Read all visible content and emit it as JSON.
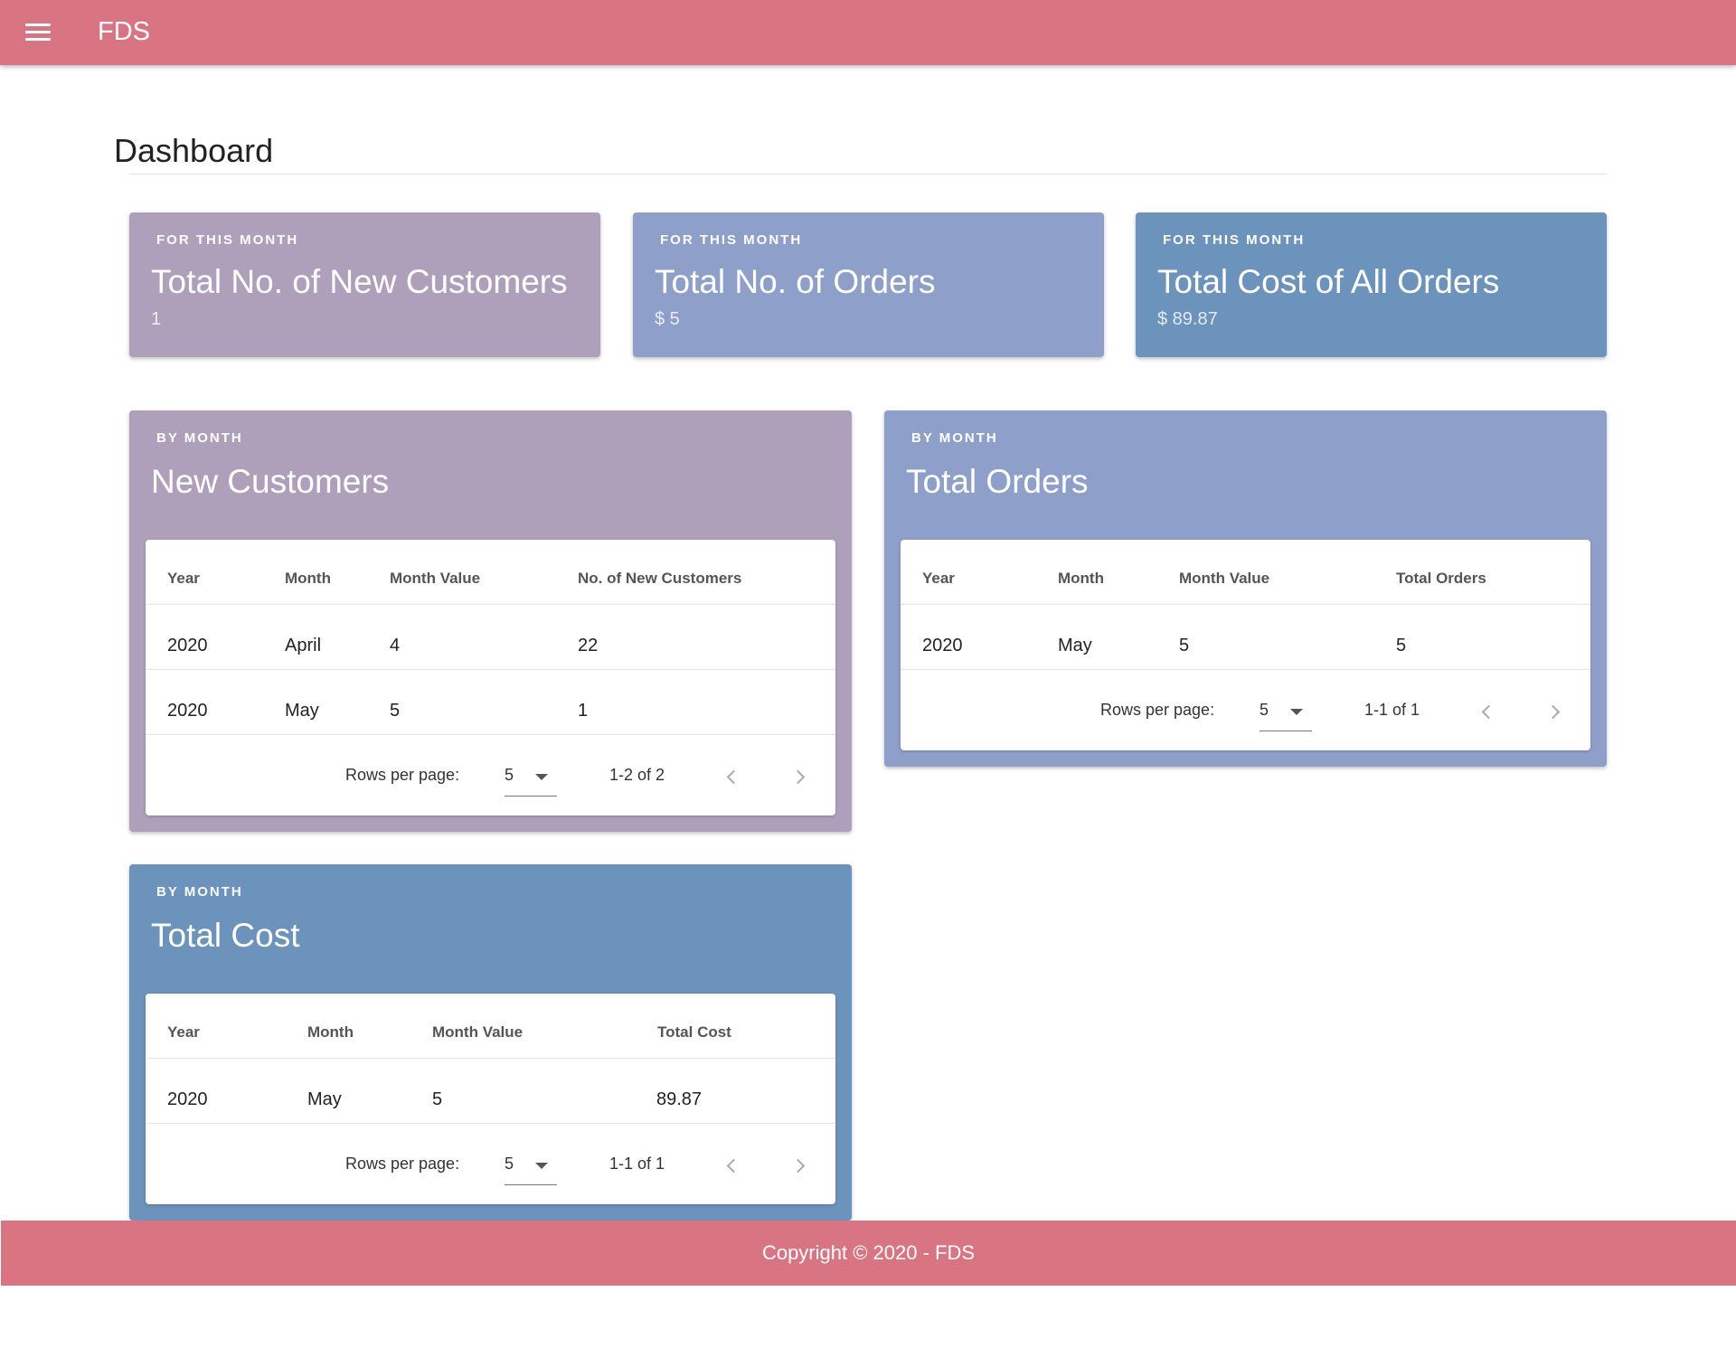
{
  "app": {
    "title": "FDS"
  },
  "page": {
    "title": "Dashboard"
  },
  "colors": {
    "primary": "#d97583",
    "purple": "#ae9fbb",
    "periwinkle": "#8e9fc9",
    "steel": "#6b93bb"
  },
  "icons": {
    "menu": "menu-icon",
    "prev": "chevron-left-icon",
    "next": "chevron-right-icon",
    "dropdown": "caret-down-icon"
  },
  "stats": [
    {
      "overline": "FOR THIS MONTH",
      "title": "Total No. of New Customers",
      "value": "1"
    },
    {
      "overline": "FOR THIS MONTH",
      "title": "Total No. of Orders",
      "value": "$ 5"
    },
    {
      "overline": "FOR THIS MONTH",
      "title": "Total Cost of All Orders",
      "value": "$ 89.87"
    }
  ],
  "customers": {
    "overline": "BY MONTH",
    "title": "New Customers",
    "headers": [
      "Year",
      "Month",
      "Month Value",
      "No. of New Customers"
    ],
    "rows": [
      [
        "2020",
        "April",
        "4",
        "22"
      ],
      [
        "2020",
        "May",
        "5",
        "1"
      ]
    ],
    "rows_label": "Rows per page:",
    "rows_value": "5",
    "range": "1-2 of 2"
  },
  "orders": {
    "overline": "BY MONTH",
    "title": "Total Orders",
    "headers": [
      "Year",
      "Month",
      "Month Value",
      "Total Orders"
    ],
    "rows": [
      [
        "2020",
        "May",
        "5",
        "5"
      ]
    ],
    "rows_label": "Rows per page:",
    "rows_value": "5",
    "range": "1-1 of 1"
  },
  "cost": {
    "overline": "BY MONTH",
    "title": "Total Cost",
    "headers": [
      "Year",
      "Month",
      "Month Value",
      "Total Cost"
    ],
    "rows": [
      [
        "2020",
        "May",
        "5",
        "89.87"
      ]
    ],
    "rows_label": "Rows per page:",
    "rows_value": "5",
    "range": "1-1 of 1"
  },
  "footer": {
    "text": "Copyright © 2020 - FDS"
  }
}
